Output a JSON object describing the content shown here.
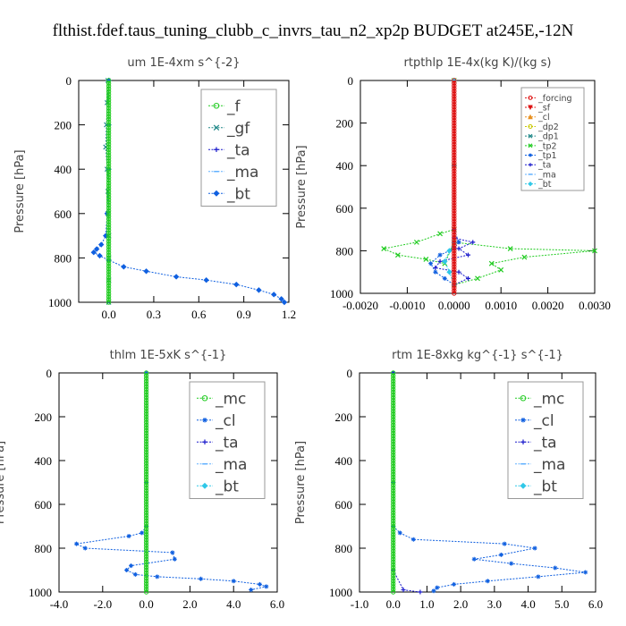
{
  "title": "flthist.fdef.taus_tuning_clubb_c_invrs_tau_n2_xp2p  BUDGET at245E,-12N",
  "colors": {
    "green": "#22cc22",
    "teal": "#208888",
    "blue": "#1060e0",
    "navy": "#1a1acc",
    "ltblue": "#60b0ff",
    "cyan": "#30c8e8",
    "red": "#dd1111",
    "orange": "#e89020",
    "yellow": "#c8c800",
    "axis": "#000000",
    "legend_border": "#999999"
  },
  "chart_data": [
    {
      "type": "line",
      "title": "um   1E-4xm s^{-2}",
      "ylabel": "Pressure [hPa]",
      "xlim": [
        -0.2,
        1.2
      ],
      "ylim": [
        1000,
        0
      ],
      "xticks": [
        0.0,
        0.3,
        0.6,
        0.9,
        1.2
      ],
      "xtick_labels": [
        "0.0",
        "0.3",
        "0.6",
        "0.9",
        "1.2"
      ],
      "yticks": [
        0,
        200,
        400,
        600,
        800,
        1000
      ],
      "ytick_labels": [
        "0",
        "200",
        "400",
        "600",
        "800",
        "1000"
      ],
      "legend": {
        "position": "top-right",
        "style": "large"
      },
      "series": [
        {
          "name": "_f",
          "color": "#22cc22",
          "marker": "o",
          "x": [
            0.0,
            0.0,
            0.0,
            0.0,
            0.0,
            0.0,
            0.0,
            0.0,
            0.0,
            0.0,
            0.0
          ],
          "y": [
            0,
            100,
            200,
            300,
            400,
            500,
            600,
            700,
            800,
            900,
            1000
          ]
        },
        {
          "name": "_gf",
          "color": "#208888",
          "marker": "x",
          "x": [
            -0.005,
            -0.01,
            -0.015,
            -0.02,
            -0.01,
            -0.005,
            -0.005,
            0.0,
            0.0,
            0.0,
            0.0
          ],
          "y": [
            0,
            100,
            200,
            300,
            400,
            500,
            600,
            700,
            800,
            900,
            1000
          ]
        },
        {
          "name": "_ta",
          "color": "#1a1acc",
          "marker": "+",
          "x": [],
          "y": []
        },
        {
          "name": "_ma",
          "color": "#60b0ff",
          "marker": "-",
          "x": [],
          "y": []
        },
        {
          "name": "_bt",
          "color": "#1060e0",
          "marker": "d",
          "x": [
            0.0,
            0.0,
            0.0,
            -0.01,
            -0.02,
            -0.05,
            -0.08,
            -0.1,
            -0.06,
            0.0,
            0.1,
            0.25,
            0.45,
            0.65,
            0.85,
            1.0,
            1.1,
            1.15,
            1.17
          ],
          "y": [
            0,
            200,
            400,
            600,
            700,
            740,
            760,
            775,
            790,
            810,
            840,
            860,
            885,
            900,
            920,
            945,
            965,
            985,
            1000
          ]
        }
      ]
    },
    {
      "type": "line",
      "title": "rtpthlp   1E-4x(kg K)/(kg s)",
      "ylabel": "Pressure [hPa]",
      "xlim": [
        -0.002,
        0.003
      ],
      "ylim": [
        1000,
        0
      ],
      "xticks": [
        -0.002,
        -0.001,
        0.0,
        0.001,
        0.002,
        0.003
      ],
      "xtick_labels": [
        "-0.0020",
        "-0.0010",
        "0.0000",
        "0.0010",
        "0.0020",
        "0.0030"
      ],
      "yticks": [
        0,
        200,
        400,
        600,
        800,
        1000
      ],
      "ytick_labels": [
        "0",
        "200",
        "400",
        "600",
        "800",
        "1000"
      ],
      "legend": {
        "position": "top-right",
        "style": "small"
      },
      "series": [
        {
          "name": "_forcing",
          "color": "#dd1111",
          "marker": "o",
          "x": [
            0.0,
            0.0,
            0.0,
            0.0,
            0.0,
            0.0,
            0.0,
            0.0,
            0.0,
            0.0,
            0.0
          ],
          "y": [
            0,
            100,
            200,
            300,
            400,
            500,
            600,
            700,
            800,
            900,
            1000
          ]
        },
        {
          "name": "_sf",
          "color": "#dd1111",
          "marker": "v",
          "x": [],
          "y": []
        },
        {
          "name": "_cl",
          "color": "#e89020",
          "marker": "^",
          "x": [],
          "y": []
        },
        {
          "name": "_dp2",
          "color": "#c8c800",
          "marker": "o",
          "x": [],
          "y": []
        },
        {
          "name": "_dp1",
          "color": "#208888",
          "marker": "x",
          "x": [],
          "y": []
        },
        {
          "name": "_tp2",
          "color": "#22cc22",
          "marker": "x",
          "x": [
            0.0,
            0.0,
            0.0,
            -0.0003,
            -0.0008,
            -0.0015,
            -0.0012,
            -0.0006,
            -0.0002,
            0.0,
            0.0012,
            0.003,
            0.0015,
            0.0008,
            0.001,
            0.0005,
            0.0
          ],
          "y": [
            0,
            400,
            700,
            720,
            760,
            790,
            820,
            840,
            860,
            760,
            790,
            800,
            830,
            860,
            890,
            930,
            960
          ]
        },
        {
          "name": "_tp1",
          "color": "#1060e0",
          "marker": "*",
          "x": [
            0.0,
            0.0,
            0.0,
            0.0001,
            0.0,
            -0.0003,
            -0.0005,
            -0.0004,
            -0.0002,
            0.0
          ],
          "y": [
            0,
            400,
            700,
            760,
            790,
            820,
            860,
            900,
            930,
            960
          ]
        },
        {
          "name": "_ta",
          "color": "#1a1acc",
          "marker": "+",
          "x": [
            0.0,
            0.0,
            0.0,
            0.0004,
            0.0001,
            0.0003,
            -0.0003,
            -0.0004,
            0.0001,
            0.0003,
            0.0
          ],
          "y": [
            0,
            400,
            740,
            760,
            790,
            820,
            850,
            880,
            900,
            930,
            960
          ]
        },
        {
          "name": "_ma",
          "color": "#60b0ff",
          "marker": "-",
          "x": [],
          "y": []
        },
        {
          "name": "_bt",
          "color": "#30c8e8",
          "marker": "d",
          "x": [
            0.0,
            0.0,
            0.0,
            -0.0001,
            -0.0002,
            -0.0001,
            0.0
          ],
          "y": [
            0,
            400,
            760,
            800,
            850,
            900,
            960
          ]
        }
      ]
    },
    {
      "type": "line",
      "title": "thlm   1E-5xK s^{-1}",
      "ylabel": "Pressure [hPa]",
      "xlim": [
        -4.0,
        6.0
      ],
      "ylim": [
        1000,
        0
      ],
      "xticks": [
        -4.0,
        -2.0,
        0.0,
        2.0,
        4.0,
        6.0
      ],
      "xtick_labels": [
        "-4.0",
        "-2.0",
        "0.0",
        "2.0",
        "4.0",
        "6.0"
      ],
      "yticks": [
        0,
        200,
        400,
        600,
        800,
        1000
      ],
      "ytick_labels": [
        "0",
        "200",
        "400",
        "600",
        "800",
        "1000"
      ],
      "legend": {
        "position": "top-right",
        "style": "large"
      },
      "series": [
        {
          "name": "_mc",
          "color": "#22cc22",
          "marker": "o",
          "x": [
            0.0,
            0.0,
            0.0,
            0.0,
            0.0,
            0.0,
            0.0,
            0.0,
            0.0,
            0.0,
            0.0
          ],
          "y": [
            0,
            100,
            200,
            300,
            400,
            500,
            600,
            700,
            800,
            900,
            1000
          ]
        },
        {
          "name": "_cl",
          "color": "#1060e0",
          "marker": "*",
          "x": [
            0.0,
            0.0,
            0.0,
            -0.2,
            -0.8,
            -3.2,
            -2.8,
            1.2,
            1.3,
            -0.7,
            -0.9,
            -0.5,
            0.5,
            2.5,
            4.0,
            5.2,
            5.5,
            4.8
          ],
          "y": [
            0,
            500,
            700,
            730,
            745,
            780,
            800,
            820,
            850,
            880,
            900,
            920,
            930,
            940,
            950,
            965,
            975,
            990
          ]
        },
        {
          "name": "_ta",
          "color": "#1a1acc",
          "marker": "+",
          "x": [],
          "y": []
        },
        {
          "name": "_ma",
          "color": "#60b0ff",
          "marker": "-",
          "x": [],
          "y": []
        },
        {
          "name": "_bt",
          "color": "#30c8e8",
          "marker": "d",
          "x": [],
          "y": []
        }
      ]
    },
    {
      "type": "line",
      "title": "rtm   1E-8xkg kg^{-1} s^{-1}",
      "ylabel": "Pressure [hPa]",
      "xlim": [
        -1.0,
        6.0
      ],
      "ylim": [
        1000,
        0
      ],
      "xticks": [
        -1.0,
        0.0,
        1.0,
        2.0,
        3.0,
        4.0,
        5.0,
        6.0
      ],
      "xtick_labels": [
        "-1.0",
        "0.0",
        "1.0",
        "2.0",
        "3.0",
        "4.0",
        "5.0",
        "6.0"
      ],
      "yticks": [
        0,
        200,
        400,
        600,
        800,
        1000
      ],
      "ytick_labels": [
        "0",
        "200",
        "400",
        "600",
        "800",
        "1000"
      ],
      "legend": {
        "position": "top-right",
        "style": "large"
      },
      "series": [
        {
          "name": "_mc",
          "color": "#22cc22",
          "marker": "o",
          "x": [
            0.0,
            0.0,
            0.0,
            0.0,
            0.0,
            0.0,
            0.0,
            0.0,
            0.0,
            0.0,
            0.0
          ],
          "y": [
            0,
            100,
            200,
            300,
            400,
            500,
            600,
            700,
            800,
            900,
            1000
          ]
        },
        {
          "name": "_cl",
          "color": "#1060e0",
          "marker": "*",
          "x": [
            0.0,
            0.0,
            0.0,
            0.2,
            0.6,
            3.3,
            4.2,
            3.2,
            2.4,
            3.5,
            4.8,
            5.7,
            4.3,
            2.8,
            1.8,
            1.3,
            1.2
          ],
          "y": [
            0,
            500,
            700,
            730,
            760,
            780,
            800,
            830,
            850,
            870,
            890,
            910,
            930,
            950,
            965,
            980,
            995
          ]
        },
        {
          "name": "_ta",
          "color": "#1a1acc",
          "marker": "+",
          "x": [
            0.0,
            0.0,
            0.3,
            0.8
          ],
          "y": [
            0,
            900,
            990,
            1000
          ]
        },
        {
          "name": "_ma",
          "color": "#60b0ff",
          "marker": "-",
          "x": [],
          "y": []
        },
        {
          "name": "_bt",
          "color": "#30c8e8",
          "marker": "d",
          "x": [],
          "y": []
        }
      ]
    }
  ]
}
